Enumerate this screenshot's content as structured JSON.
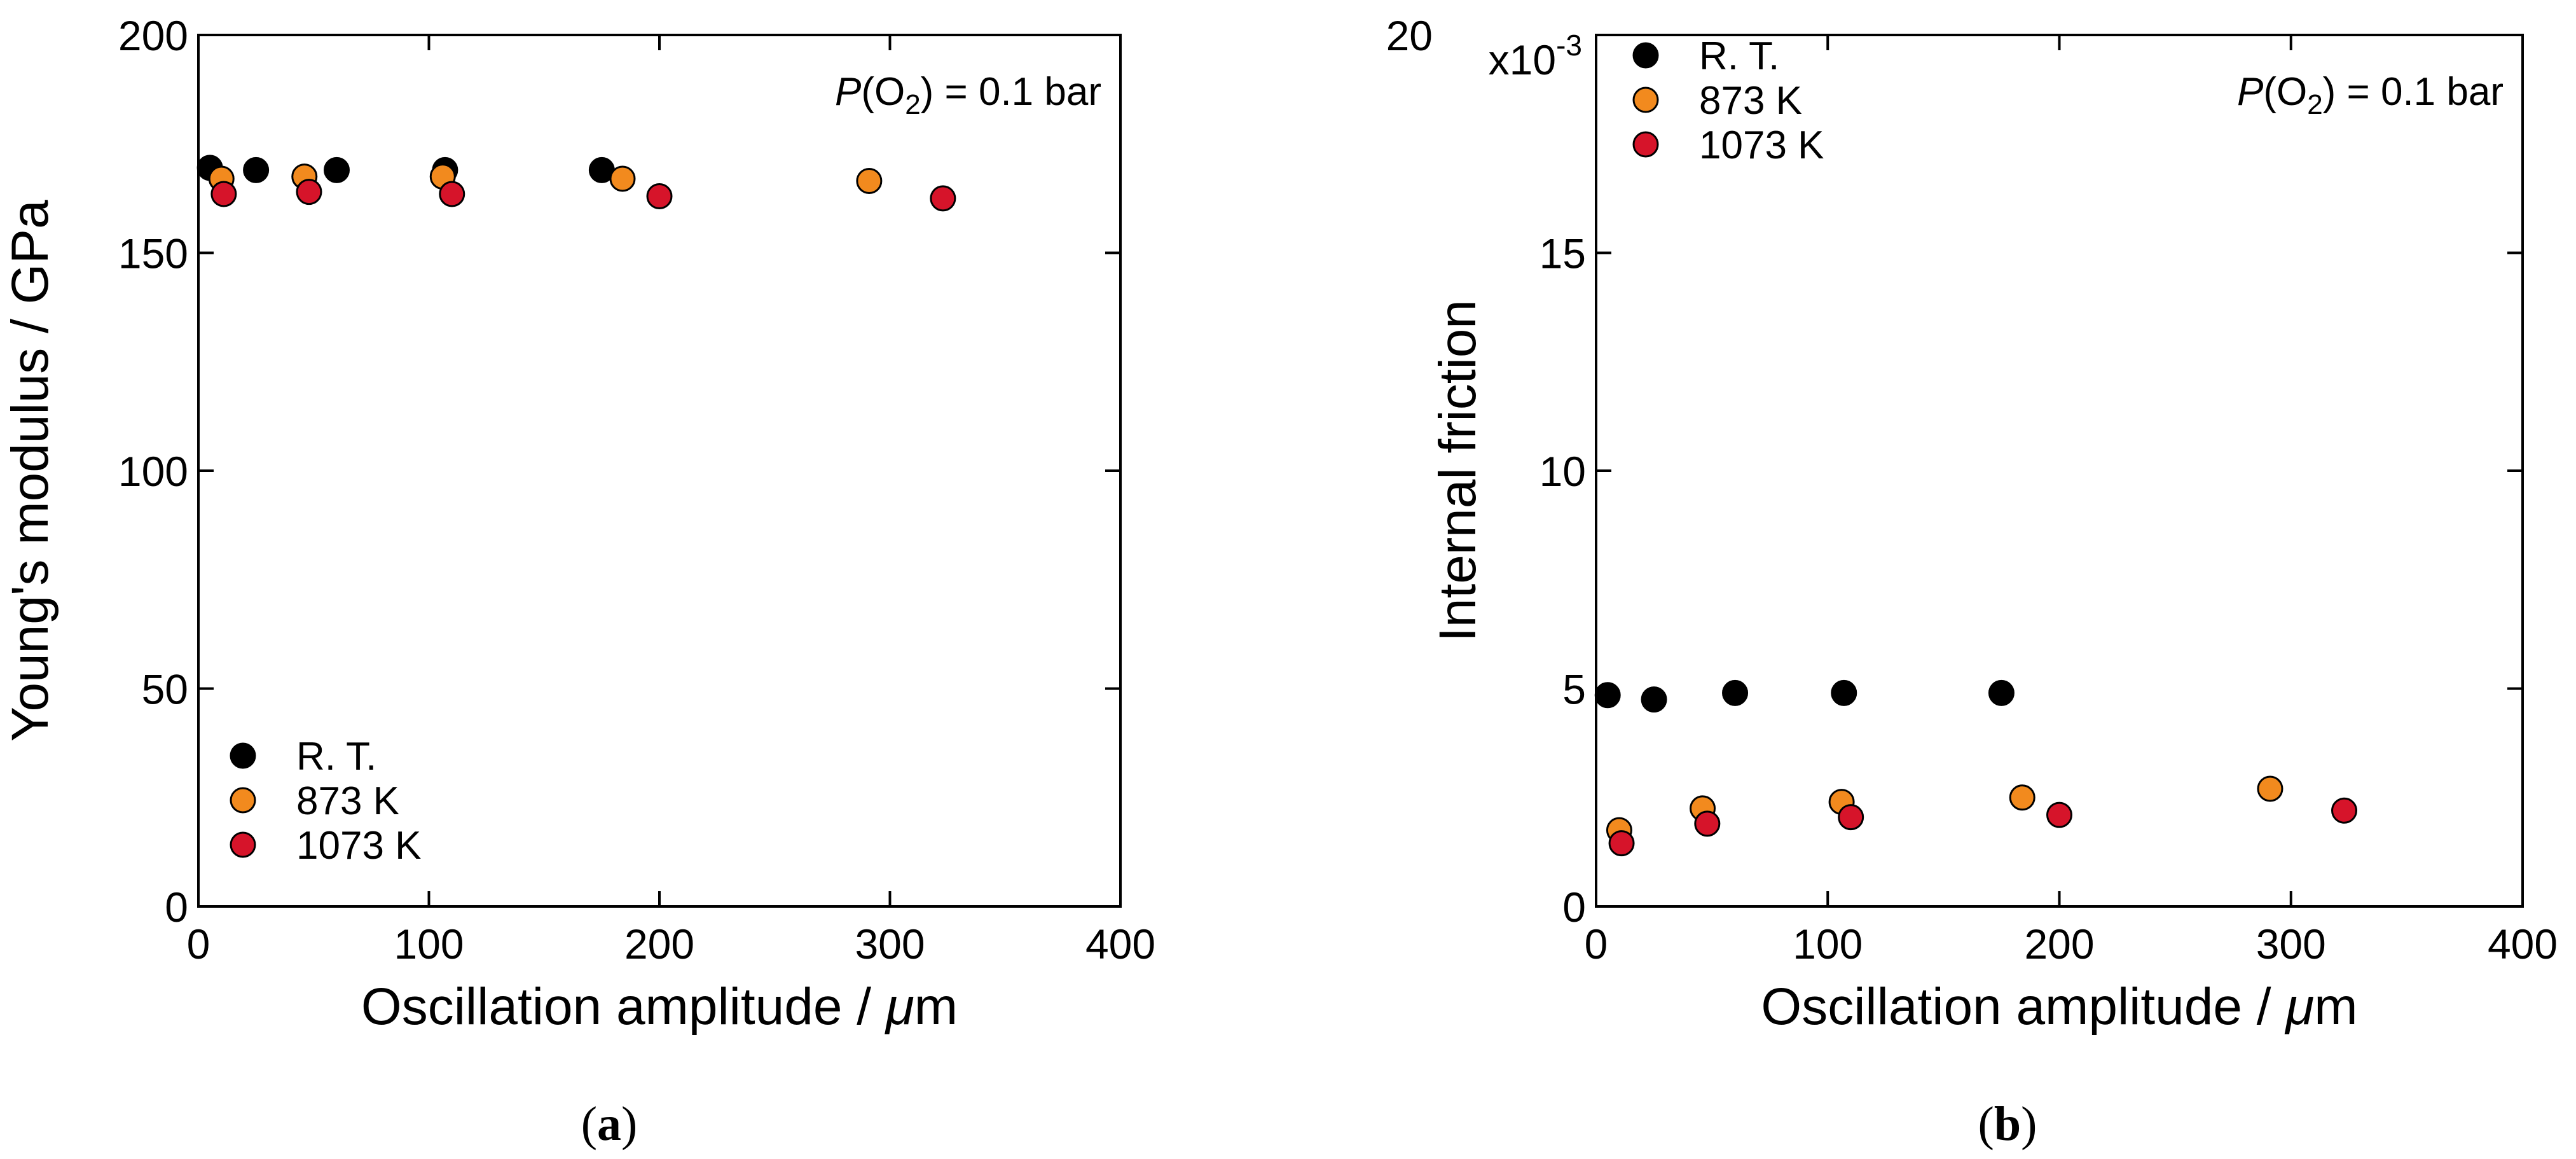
{
  "chart_data": [
    {
      "type": "scatter",
      "panel_label": "(a)",
      "xlabel": "Oscillation amplitude / μm",
      "ylabel": "Young's modulus / GPa",
      "xlim": [
        0,
        400
      ],
      "ylim": [
        0,
        200
      ],
      "xticks": [
        0,
        100,
        200,
        300,
        400
      ],
      "yticks": [
        0,
        50,
        100,
        150,
        200
      ],
      "exponent_label": "",
      "annotation": "P(O2) = 0.1 bar",
      "legend_position": "bottom-left",
      "series": [
        {
          "name": "R. T.",
          "color": "#000000",
          "x": [
            5,
            25,
            60,
            107,
            175
          ],
          "y": [
            169.5,
            169,
            169,
            169,
            169
          ]
        },
        {
          "name": "873 K",
          "color": "#f28a1e",
          "x": [
            10,
            46,
            106,
            184,
            291
          ],
          "y": [
            167,
            167.5,
            167.5,
            167,
            166.5
          ]
        },
        {
          "name": "1073 K",
          "color": "#d6142a",
          "x": [
            11,
            48,
            110,
            200,
            323
          ],
          "y": [
            163.5,
            164,
            163.5,
            163,
            162.5
          ]
        }
      ]
    },
    {
      "type": "scatter",
      "panel_label": "(b)",
      "xlabel": "Oscillation amplitude / μm",
      "ylabel": "Internal friction",
      "xlim": [
        0,
        400
      ],
      "ylim": [
        0,
        20
      ],
      "xticks": [
        0,
        100,
        200,
        300,
        400
      ],
      "yticks": [
        0,
        5,
        10,
        15,
        20
      ],
      "exponent_label": "x10",
      "exponent_power": "-3",
      "annotation": "P(O2) = 0.1 bar",
      "legend_position": "top-left",
      "series": [
        {
          "name": "R. T.",
          "color": "#000000",
          "x": [
            5,
            25,
            60,
            107,
            175
          ],
          "y": [
            4.85,
            4.75,
            4.9,
            4.9,
            4.9
          ]
        },
        {
          "name": "873 K",
          "color": "#f28a1e",
          "x": [
            10,
            46,
            106,
            184,
            291
          ],
          "y": [
            1.75,
            2.25,
            2.4,
            2.5,
            2.7
          ]
        },
        {
          "name": "1073 K",
          "color": "#d6142a",
          "x": [
            11,
            48,
            110,
            200,
            323
          ],
          "y": [
            1.45,
            1.9,
            2.05,
            2.1,
            2.2
          ]
        }
      ]
    }
  ]
}
